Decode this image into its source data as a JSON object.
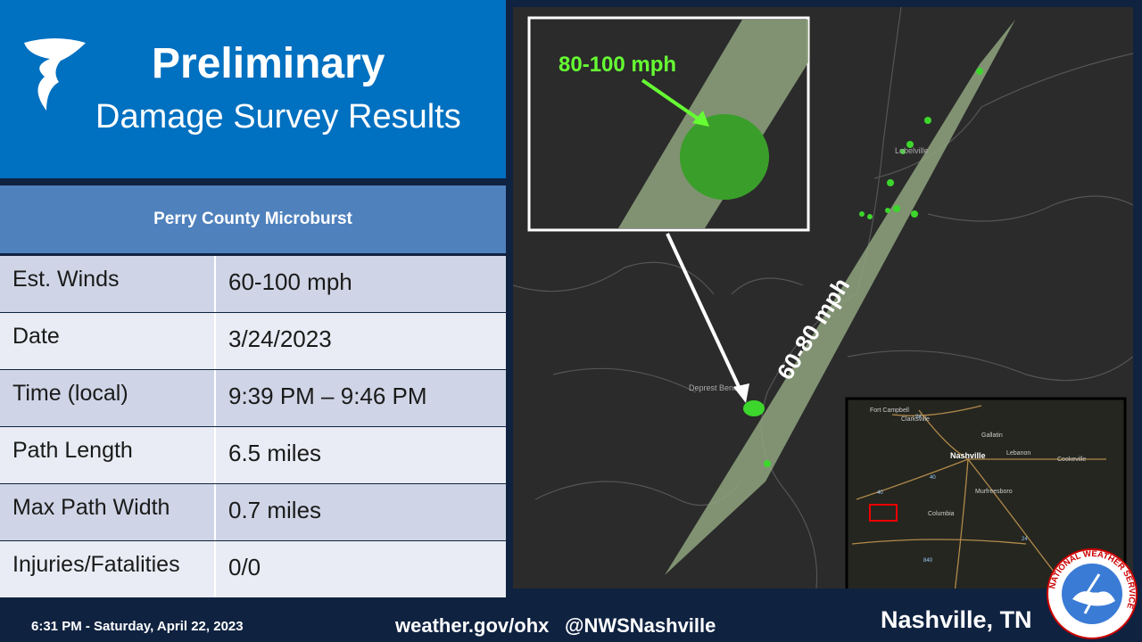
{
  "header": {
    "title": "Preliminary",
    "subtitle": "Damage Survey Results"
  },
  "table": {
    "title": "Perry County Microburst",
    "rows": [
      [
        "Est. Winds",
        "60-100 mph"
      ],
      [
        "Date",
        "3/24/2023"
      ],
      [
        "Time (local)",
        "9:39 PM – 9:46 PM"
      ],
      [
        "Path Length",
        "6.5 miles"
      ],
      [
        "Max Path Width",
        "0.7 miles"
      ],
      [
        "Injuries/Fatalities",
        "0/0"
      ]
    ]
  },
  "map": {
    "inset_label": "80-100 mph",
    "path_label": "60-80 mph",
    "places": [
      "Lobelville",
      "Deprest Bend"
    ],
    "locator_places": [
      "Fort Campbell",
      "Clarksville",
      "Gallatin",
      "Nashville",
      "Lebanon",
      "Cookeville",
      "Murfreesboro",
      "Columbia"
    ],
    "locator_routes": [
      "24",
      "40",
      "40",
      "24",
      "840"
    ]
  },
  "footer": {
    "timestamp": "6:31 PM - Saturday, April 22, 2023",
    "website": "weather.gov/ohx",
    "handle": "@NWSNashville",
    "office": "Nashville, TN",
    "logo_text": "NATIONAL WEATHER SERVICE"
  }
}
